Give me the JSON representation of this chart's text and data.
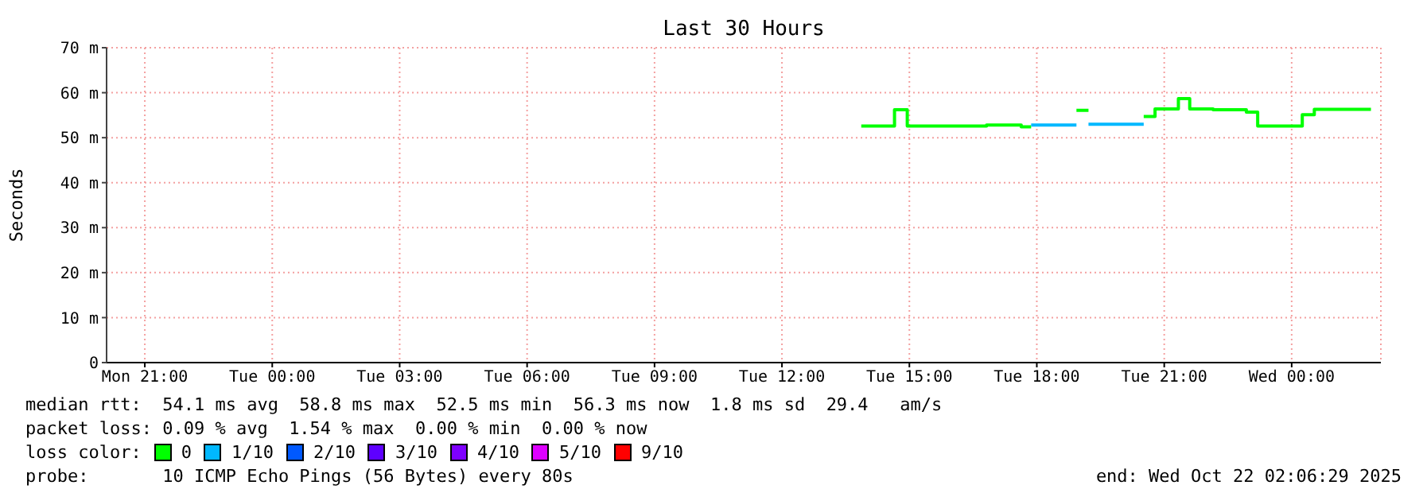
{
  "chart_data": {
    "type": "step",
    "title": "Last 30 Hours",
    "ylabel": "Seconds",
    "xlim": [
      "2025-10-20T20:06",
      "2025-10-22T02:06"
    ],
    "xticks": [
      {
        "value": "2025-10-20T21:00",
        "label": "Mon 21:00"
      },
      {
        "value": "2025-10-21T00:00",
        "label": "Tue 00:00"
      },
      {
        "value": "2025-10-21T03:00",
        "label": "Tue 03:00"
      },
      {
        "value": "2025-10-21T06:00",
        "label": "Tue 06:00"
      },
      {
        "value": "2025-10-21T09:00",
        "label": "Tue 09:00"
      },
      {
        "value": "2025-10-21T12:00",
        "label": "Tue 12:00"
      },
      {
        "value": "2025-10-21T15:00",
        "label": "Tue 15:00"
      },
      {
        "value": "2025-10-21T18:00",
        "label": "Tue 18:00"
      },
      {
        "value": "2025-10-21T21:00",
        "label": "Tue 21:00"
      },
      {
        "value": "2025-10-22T00:00",
        "label": "Wed 00:00"
      }
    ],
    "ylim": [
      0,
      70
    ],
    "yticks": [
      0,
      {
        "value": 10,
        "label": "10 m"
      },
      {
        "value": 20,
        "label": "20 m"
      },
      {
        "value": 30,
        "label": "30 m"
      },
      {
        "value": 40,
        "label": "40 m"
      },
      {
        "value": 50,
        "label": "50 m"
      },
      {
        "value": 60,
        "label": "60 m"
      },
      {
        "value": 70,
        "label": "70 m"
      }
    ],
    "grid": true,
    "legend": "bottom",
    "legend_title": "loss color:",
    "marker": "none",
    "line_style": "solid",
    "series": [
      {
        "name": "0",
        "color": "#00ff00",
        "x": [
          "2025-10-21T13:52",
          "2025-10-21T14:39",
          "2025-10-21T14:57",
          "2025-10-21T16:49",
          "2025-10-21T17:38",
          "2025-10-21T17:52",
          "2025-10-21T18:00",
          "2025-10-21T18:56",
          "2025-10-21T19:13",
          "2025-10-21T19:20",
          "2025-10-21T20:31",
          "2025-10-21T20:47",
          "2025-10-21T21:20",
          "2025-10-21T21:36",
          "2025-10-21T22:09",
          "2025-10-21T22:56",
          "2025-10-21T23:12",
          "2025-10-22T00:15",
          "2025-10-22T00:32",
          "2025-10-22T01:52"
        ],
        "values": [
          52.6,
          56.2,
          52.6,
          52.8,
          52.4,
          52.4,
          null,
          56.1,
          56.1,
          null,
          54.7,
          56.4,
          58.7,
          56.4,
          56.2,
          55.7,
          52.6,
          55.1,
          56.3,
          56.3
        ]
      },
      {
        "name": "1/10",
        "color": "#00b8ff",
        "x": [
          "2025-10-21T17:52",
          "2025-10-21T18:56",
          "2025-10-21T19:00",
          "2025-10-21T19:13",
          "2025-10-21T20:31"
        ],
        "values": [
          52.8,
          52.8,
          null,
          53.0,
          53.0
        ]
      },
      {
        "name": "2/10",
        "color": "#0059ff"
      },
      {
        "name": "3/10",
        "color": "#5e00ff"
      },
      {
        "name": "4/10",
        "color": "#7e00ff"
      },
      {
        "name": "5/10",
        "color": "#dd00ff"
      },
      {
        "name": "9/10",
        "color": "#ff0000"
      }
    ],
    "annotations": [
      "median rtt:  54.1 ms avg  58.8 ms max  52.5 ms min  56.3 ms now  1.8 ms sd  29.4   am/s",
      "packet loss: 0.09 % avg  1.54 % max  0.00 % min  0.00 % now",
      "probe:       10 ICMP Echo Pings (56 Bytes) every 80s",
      "end: Wed Oct 22 02:06:29 2025"
    ]
  }
}
